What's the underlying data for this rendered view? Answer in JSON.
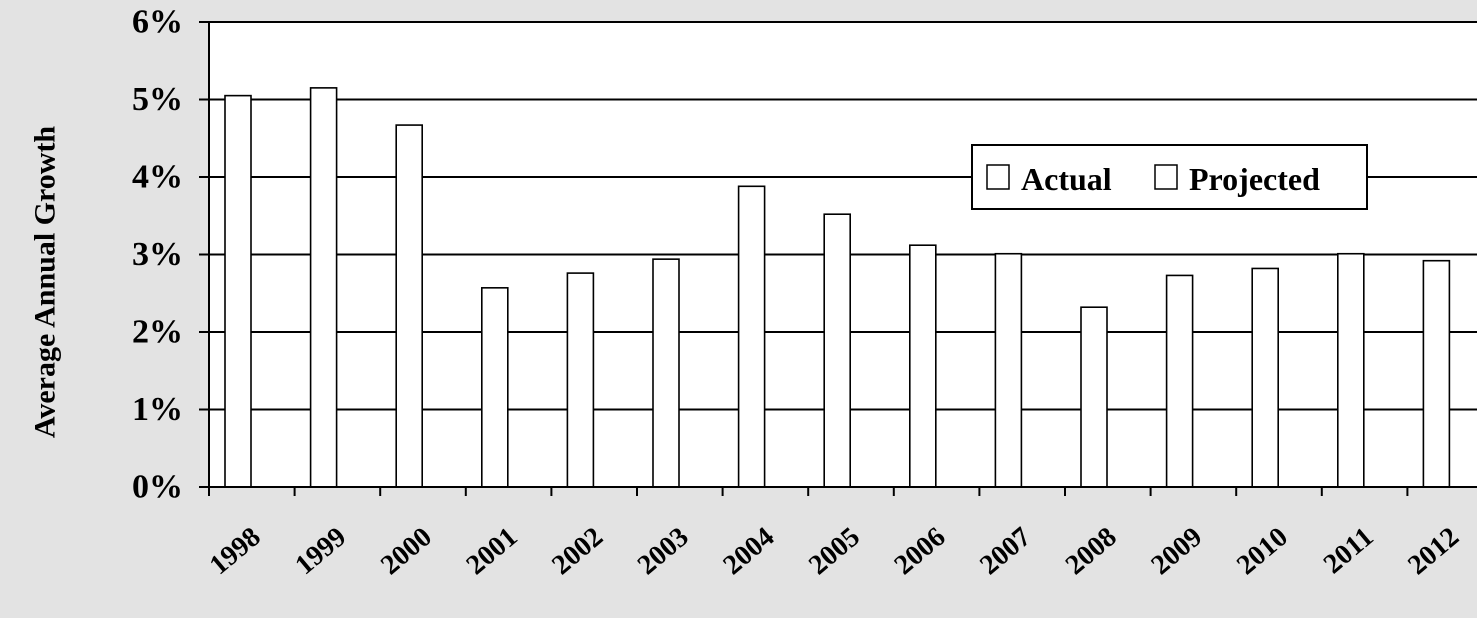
{
  "chart_data": {
    "type": "bar",
    "title": "",
    "xlabel": "",
    "ylabel": "Average Annual Growth",
    "ylim": [
      0,
      6
    ],
    "y_ticks": [
      "0%",
      "1%",
      "2%",
      "3%",
      "4%",
      "5%",
      "6%"
    ],
    "grid": true,
    "legend_position": "center-right",
    "legend": [
      "Actual",
      "Projected"
    ],
    "categories": [
      "1998",
      "1999",
      "2000",
      "2001",
      "2002",
      "2003",
      "2004",
      "2005",
      "2006",
      "2007",
      "2008",
      "2009",
      "2010",
      "2011",
      "2012"
    ],
    "series": [
      {
        "name": "Actual",
        "color": "#ffffff",
        "values": [
          5.05,
          5.15,
          4.67,
          2.57,
          2.76,
          2.94,
          3.88,
          3.52,
          3.12,
          3.01,
          2.32,
          2.73,
          2.82,
          3.01,
          2.92
        ]
      }
    ]
  }
}
